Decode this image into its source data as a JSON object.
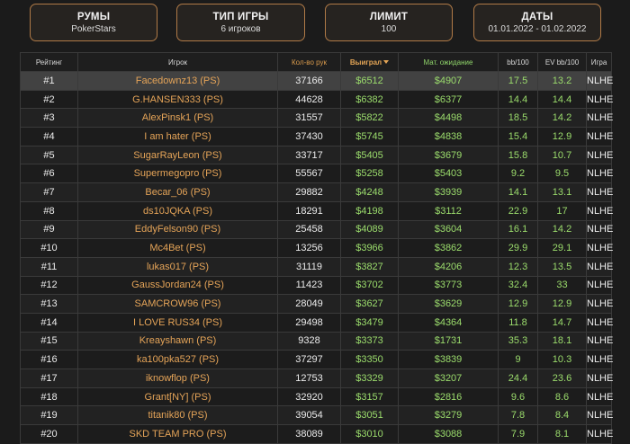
{
  "filters": [
    {
      "title": "РУМЫ",
      "value": "PokerStars"
    },
    {
      "title": "ТИП ИГРЫ",
      "value": "6 игроков"
    },
    {
      "title": "ЛИМИТ",
      "value": "100"
    },
    {
      "title": "ДАТЫ",
      "value": "01.01.2022 - 01.02.2022"
    }
  ],
  "table": {
    "headers": {
      "rank": "Рейтинг",
      "player": "Игрок",
      "hands": "Кол-во рук",
      "won": "Выиграл",
      "ev": "Мат. ожидание",
      "bb100": "bb/100",
      "evbb100": "EV bb/100",
      "game": "Игра"
    },
    "rows": [
      {
        "rank": "#1",
        "player": "Facedownz13 (PS)",
        "hands": "37166",
        "won": "$6512",
        "ev": "$4907",
        "bb100": "17.5",
        "evbb100": "13.2",
        "game": "NLHE"
      },
      {
        "rank": "#2",
        "player": "G.HANSEN333 (PS)",
        "hands": "44628",
        "won": "$6382",
        "ev": "$6377",
        "bb100": "14.4",
        "evbb100": "14.4",
        "game": "NLHE"
      },
      {
        "rank": "#3",
        "player": "AlexPinsk1 (PS)",
        "hands": "31557",
        "won": "$5822",
        "ev": "$4498",
        "bb100": "18.5",
        "evbb100": "14.2",
        "game": "NLHE"
      },
      {
        "rank": "#4",
        "player": "I am hater (PS)",
        "hands": "37430",
        "won": "$5745",
        "ev": "$4838",
        "bb100": "15.4",
        "evbb100": "12.9",
        "game": "NLHE"
      },
      {
        "rank": "#5",
        "player": "SugarRayLeon (PS)",
        "hands": "33717",
        "won": "$5405",
        "ev": "$3679",
        "bb100": "15.8",
        "evbb100": "10.7",
        "game": "NLHE"
      },
      {
        "rank": "#6",
        "player": "Supermegopro (PS)",
        "hands": "55567",
        "won": "$5258",
        "ev": "$5403",
        "bb100": "9.2",
        "evbb100": "9.5",
        "game": "NLHE"
      },
      {
        "rank": "#7",
        "player": "Becar_06 (PS)",
        "hands": "29882",
        "won": "$4248",
        "ev": "$3939",
        "bb100": "14.1",
        "evbb100": "13.1",
        "game": "NLHE"
      },
      {
        "rank": "#8",
        "player": "ds10JQKA (PS)",
        "hands": "18291",
        "won": "$4198",
        "ev": "$3112",
        "bb100": "22.9",
        "evbb100": "17",
        "game": "NLHE"
      },
      {
        "rank": "#9",
        "player": "EddyFelson90 (PS)",
        "hands": "25458",
        "won": "$4089",
        "ev": "$3604",
        "bb100": "16.1",
        "evbb100": "14.2",
        "game": "NLHE"
      },
      {
        "rank": "#10",
        "player": "Mc4Bet (PS)",
        "hands": "13256",
        "won": "$3966",
        "ev": "$3862",
        "bb100": "29.9",
        "evbb100": "29.1",
        "game": "NLHE"
      },
      {
        "rank": "#11",
        "player": "lukas017 (PS)",
        "hands": "31119",
        "won": "$3827",
        "ev": "$4206",
        "bb100": "12.3",
        "evbb100": "13.5",
        "game": "NLHE"
      },
      {
        "rank": "#12",
        "player": "GaussJordan24 (PS)",
        "hands": "11423",
        "won": "$3702",
        "ev": "$3773",
        "bb100": "32.4",
        "evbb100": "33",
        "game": "NLHE"
      },
      {
        "rank": "#13",
        "player": "SAMCROW96 (PS)",
        "hands": "28049",
        "won": "$3627",
        "ev": "$3629",
        "bb100": "12.9",
        "evbb100": "12.9",
        "game": "NLHE"
      },
      {
        "rank": "#14",
        "player": "I LOVE RUS34 (PS)",
        "hands": "29498",
        "won": "$3479",
        "ev": "$4364",
        "bb100": "11.8",
        "evbb100": "14.7",
        "game": "NLHE"
      },
      {
        "rank": "#15",
        "player": "Kreayshawn (PS)",
        "hands": "9328",
        "won": "$3373",
        "ev": "$1731",
        "bb100": "35.3",
        "evbb100": "18.1",
        "game": "NLHE"
      },
      {
        "rank": "#16",
        "player": "ka100pka527 (PS)",
        "hands": "37297",
        "won": "$3350",
        "ev": "$3839",
        "bb100": "9",
        "evbb100": "10.3",
        "game": "NLHE"
      },
      {
        "rank": "#17",
        "player": "iknowflop (PS)",
        "hands": "12753",
        "won": "$3329",
        "ev": "$3207",
        "bb100": "24.4",
        "evbb100": "23.6",
        "game": "NLHE"
      },
      {
        "rank": "#18",
        "player": "Grant[NY] (PS)",
        "hands": "32920",
        "won": "$3157",
        "ev": "$2816",
        "bb100": "9.6",
        "evbb100": "8.6",
        "game": "NLHE"
      },
      {
        "rank": "#19",
        "player": "titanik80 (PS)",
        "hands": "39054",
        "won": "$3051",
        "ev": "$3279",
        "bb100": "7.8",
        "evbb100": "8.4",
        "game": "NLHE"
      },
      {
        "rank": "#20",
        "player": "SKD TEAM PRO (PS)",
        "hands": "38089",
        "won": "$3010",
        "ev": "$3088",
        "bb100": "7.9",
        "evbb100": "8.1",
        "game": "NLHE"
      }
    ]
  },
  "colors": {
    "filter_border": "#b07a47",
    "player_link": "#e5a458",
    "positive_value": "#9bdc6c",
    "highlighted_row": "#424242"
  }
}
